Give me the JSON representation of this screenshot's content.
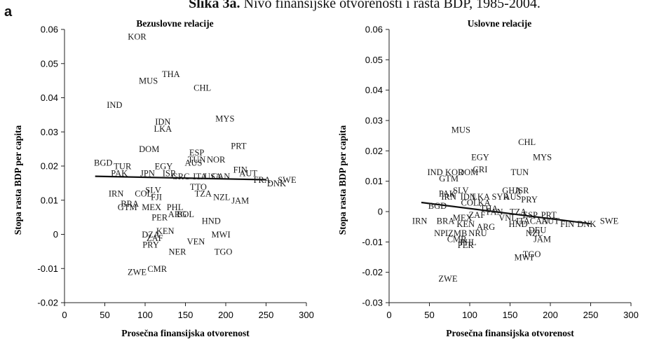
{
  "figure": {
    "title_bold": "Slika 3a.",
    "title_rest": " Nivo finansijske otvorenosti i rasta BDP, 1985-2004.",
    "panel_letter": "a"
  },
  "chart_data": [
    {
      "type": "scatter",
      "title": "Bezuslovne relacije",
      "xlabel": "Prosečna finansijska otvorenost",
      "ylabel": "Stopa rasta BDP per capita",
      "xlim": [
        0,
        300
      ],
      "ylim": [
        -0.02,
        0.06
      ],
      "xticks": [
        "0",
        "50",
        "100",
        "150",
        "200",
        "250",
        "300"
      ],
      "yticks": [
        "-0.02",
        "-0.01",
        "0",
        "0.01",
        "0.02",
        "0.03",
        "0.04",
        "0.05",
        "0.06"
      ],
      "grid": false,
      "points": [
        {
          "label": "KOR",
          "x": 90,
          "y": 0.058
        },
        {
          "label": "THA",
          "x": 132,
          "y": 0.047
        },
        {
          "label": "MUS",
          "x": 104,
          "y": 0.045
        },
        {
          "label": "CHL",
          "x": 171,
          "y": 0.043
        },
        {
          "label": "IND",
          "x": 62,
          "y": 0.038
        },
        {
          "label": "MYS",
          "x": 199,
          "y": 0.034
        },
        {
          "label": "IDN",
          "x": 122,
          "y": 0.033
        },
        {
          "label": "LKA",
          "x": 122,
          "y": 0.031
        },
        {
          "label": "PRT",
          "x": 216,
          "y": 0.026
        },
        {
          "label": "DOM",
          "x": 105,
          "y": 0.025
        },
        {
          "label": "ESP",
          "x": 164,
          "y": 0.024
        },
        {
          "label": "TUN",
          "x": 164,
          "y": 0.022
        },
        {
          "label": "NOR",
          "x": 188,
          "y": 0.022
        },
        {
          "label": "AUS",
          "x": 160,
          "y": 0.021
        },
        {
          "label": "BGD",
          "x": 48,
          "y": 0.021
        },
        {
          "label": "TUR",
          "x": 72,
          "y": 0.02
        },
        {
          "label": "EGY",
          "x": 123,
          "y": 0.02
        },
        {
          "label": "FIN",
          "x": 218,
          "y": 0.019
        },
        {
          "label": "AUT",
          "x": 228,
          "y": 0.018
        },
        {
          "label": "PAK",
          "x": 68,
          "y": 0.018
        },
        {
          "label": "JPN",
          "x": 103,
          "y": 0.018
        },
        {
          "label": "ISR",
          "x": 130,
          "y": 0.018
        },
        {
          "label": "GRC",
          "x": 144,
          "y": 0.017
        },
        {
          "label": "ITA",
          "x": 168,
          "y": 0.017
        },
        {
          "label": "USA",
          "x": 184,
          "y": 0.017
        },
        {
          "label": "CAN",
          "x": 194,
          "y": 0.017
        },
        {
          "label": "FRA",
          "x": 245,
          "y": 0.016
        },
        {
          "label": "SWE",
          "x": 276,
          "y": 0.016
        },
        {
          "label": "DNK",
          "x": 263,
          "y": 0.015
        },
        {
          "label": "TTO",
          "x": 166,
          "y": 0.014
        },
        {
          "label": "IRN",
          "x": 64,
          "y": 0.012
        },
        {
          "label": "COL",
          "x": 98,
          "y": 0.012
        },
        {
          "label": "SLV",
          "x": 110,
          "y": 0.013
        },
        {
          "label": "TZA",
          "x": 172,
          "y": 0.012
        },
        {
          "label": "NZL",
          "x": 195,
          "y": 0.011
        },
        {
          "label": "JAM",
          "x": 218,
          "y": 0.01
        },
        {
          "label": "FJI",
          "x": 114,
          "y": 0.011
        },
        {
          "label": "BRA",
          "x": 81,
          "y": 0.009
        },
        {
          "label": "GTM",
          "x": 78,
          "y": 0.008
        },
        {
          "label": "MEX",
          "x": 108,
          "y": 0.008
        },
        {
          "label": "PHL",
          "x": 137,
          "y": 0.008
        },
        {
          "label": "PER",
          "x": 118,
          "y": 0.005
        },
        {
          "label": "ARG",
          "x": 140,
          "y": 0.006
        },
        {
          "label": "BOL",
          "x": 150,
          "y": 0.006
        },
        {
          "label": "HND",
          "x": 182,
          "y": 0.004
        },
        {
          "label": "KEN",
          "x": 125,
          "y": 0.001
        },
        {
          "label": "MWI",
          "x": 194,
          "y": 0.0
        },
        {
          "label": "DZA",
          "x": 107,
          "y": 0.0
        },
        {
          "label": "ZAF",
          "x": 112,
          "y": -0.001
        },
        {
          "label": "VEN",
          "x": 163,
          "y": -0.002
        },
        {
          "label": "PRY",
          "x": 107,
          "y": -0.003
        },
        {
          "label": "NER",
          "x": 140,
          "y": -0.005
        },
        {
          "label": "TGO",
          "x": 197,
          "y": -0.005
        },
        {
          "label": "CMR",
          "x": 115,
          "y": -0.01
        },
        {
          "label": "ZWE",
          "x": 90,
          "y": -0.011
        }
      ],
      "trend": {
        "x": [
          38,
          250
        ],
        "y": [
          0.017,
          0.016
        ]
      }
    },
    {
      "type": "scatter",
      "title": "Uslovne relacije",
      "xlabel": "Prosečna finansijska otvorenost",
      "ylabel": "Stopa rasta BDP per capita",
      "xlim": [
        0,
        300
      ],
      "ylim": [
        -0.03,
        0.06
      ],
      "xticks": [
        "0",
        "50",
        "100",
        "150",
        "200",
        "250",
        "300"
      ],
      "yticks": [
        "-0.03",
        "-0.02",
        "-0.01",
        "0",
        "0.01",
        "0.02",
        "0.03",
        "0.04",
        "0.05",
        "0.06"
      ],
      "grid": false,
      "points": [
        {
          "label": "MUS",
          "x": 89,
          "y": 0.027
        },
        {
          "label": "CHL",
          "x": 171,
          "y": 0.023
        },
        {
          "label": "EGY",
          "x": 113,
          "y": 0.018
        },
        {
          "label": "MYS",
          "x": 190,
          "y": 0.018
        },
        {
          "label": "IND",
          "x": 57,
          "y": 0.013
        },
        {
          "label": "KOR",
          "x": 81,
          "y": 0.013
        },
        {
          "label": "DOM",
          "x": 98,
          "y": 0.013
        },
        {
          "label": "CRI",
          "x": 113,
          "y": 0.014
        },
        {
          "label": "TUN",
          "x": 162,
          "y": 0.013
        },
        {
          "label": "GTM",
          "x": 74,
          "y": 0.011
        },
        {
          "label": "SLV",
          "x": 89,
          "y": 0.007
        },
        {
          "label": "GHA",
          "x": 152,
          "y": 0.007
        },
        {
          "label": "ISR",
          "x": 165,
          "y": 0.007
        },
        {
          "label": "PAK",
          "x": 72,
          "y": 0.006
        },
        {
          "label": "IRN",
          "x": 74,
          "y": 0.005
        },
        {
          "label": "IDN",
          "x": 98,
          "y": 0.005
        },
        {
          "label": "LKA",
          "x": 114,
          "y": 0.005
        },
        {
          "label": "SYR",
          "x": 138,
          "y": 0.005
        },
        {
          "label": "AUS",
          "x": 153,
          "y": 0.005
        },
        {
          "label": "PRY",
          "x": 174,
          "y": 0.004
        },
        {
          "label": "BGD",
          "x": 60,
          "y": 0.002
        },
        {
          "label": "COL",
          "x": 100,
          "y": 0.003
        },
        {
          "label": "KA",
          "x": 118,
          "y": 0.003
        },
        {
          "label": "ZAF",
          "x": 109,
          "y": -0.001
        },
        {
          "label": "THA",
          "x": 124,
          "y": 0.001
        },
        {
          "label": "PAN",
          "x": 131,
          "y": 0.0
        },
        {
          "label": "TZA",
          "x": 160,
          "y": 0.0
        },
        {
          "label": "ESP",
          "x": 175,
          "y": -0.001
        },
        {
          "label": "PRT",
          "x": 198,
          "y": -0.001
        },
        {
          "label": "SWE",
          "x": 273,
          "y": -0.003
        },
        {
          "label": "MEX",
          "x": 91,
          "y": -0.002
        },
        {
          "label": "VNL",
          "x": 147,
          "y": -0.002
        },
        {
          "label": "CAN",
          "x": 186,
          "y": -0.003
        },
        {
          "label": "IRN",
          "x": 38,
          "y": -0.003
        },
        {
          "label": "BRA",
          "x": 70,
          "y": -0.003
        },
        {
          "label": "KEN",
          "x": 95,
          "y": -0.004
        },
        {
          "label": "ARG",
          "x": 120,
          "y": -0.005
        },
        {
          "label": "ITA",
          "x": 166,
          "y": -0.003
        },
        {
          "label": "FIN",
          "x": 221,
          "y": -0.004
        },
        {
          "label": "DNK",
          "x": 245,
          "y": -0.004
        },
        {
          "label": "HND",
          "x": 160,
          "y": -0.004
        },
        {
          "label": "AUT",
          "x": 200,
          "y": -0.003
        },
        {
          "label": "NPL",
          "x": 66,
          "y": -0.007
        },
        {
          "label": "ZMB",
          "x": 85,
          "y": -0.007
        },
        {
          "label": "NRU",
          "x": 110,
          "y": -0.007
        },
        {
          "label": "DEU",
          "x": 184,
          "y": -0.006
        },
        {
          "label": "NZL",
          "x": 180,
          "y": -0.007
        },
        {
          "label": "JAM",
          "x": 190,
          "y": -0.009
        },
        {
          "label": "CMR",
          "x": 84,
          "y": -0.009
        },
        {
          "label": "PHL",
          "x": 98,
          "y": -0.01
        },
        {
          "label": "PER",
          "x": 95,
          "y": -0.011
        },
        {
          "label": "MWI",
          "x": 167,
          "y": -0.015
        },
        {
          "label": "TGO",
          "x": 177,
          "y": -0.014
        },
        {
          "label": "ZWE",
          "x": 73,
          "y": -0.022
        }
      ],
      "trend": {
        "x": [
          40,
          250
        ],
        "y": [
          0.003,
          -0.004
        ]
      }
    }
  ]
}
